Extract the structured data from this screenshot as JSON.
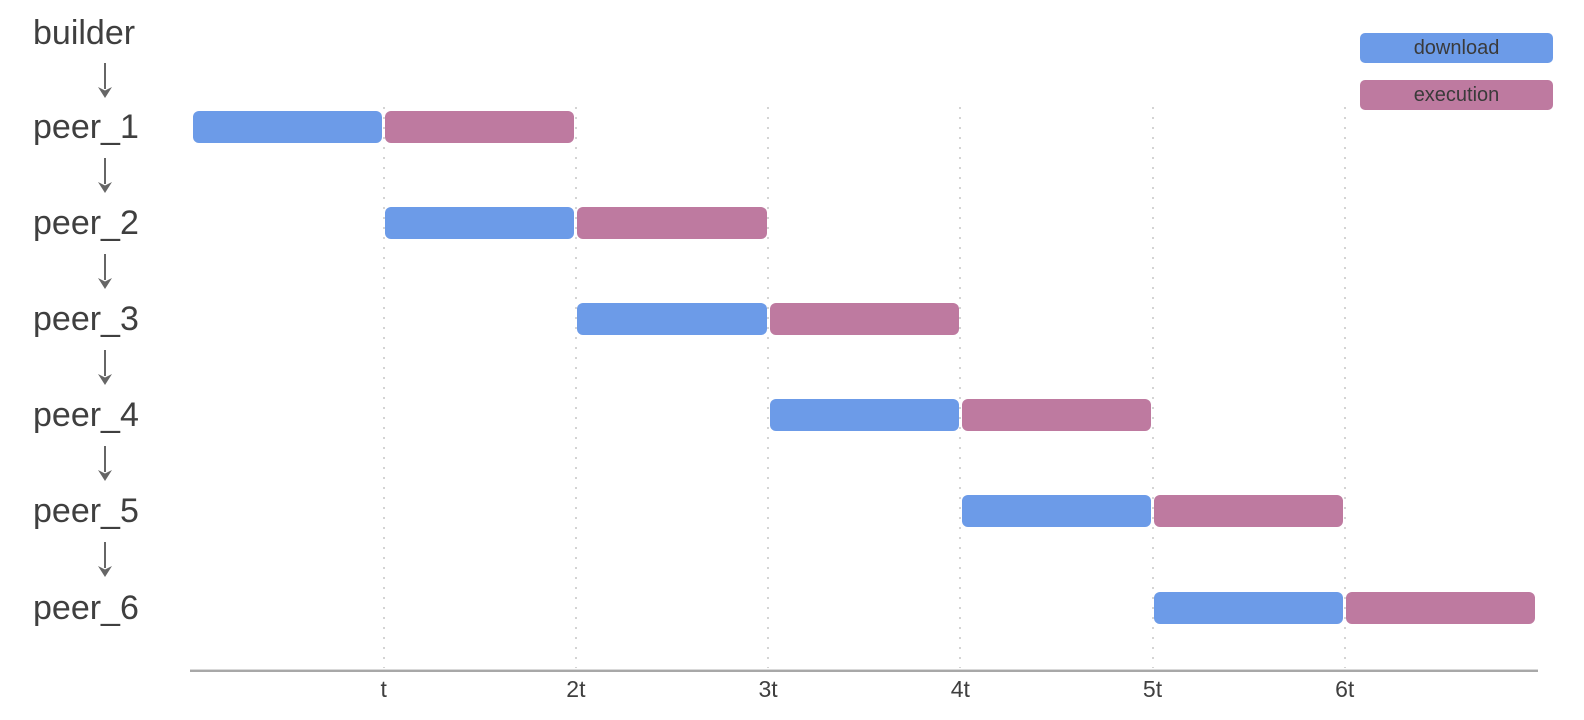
{
  "chart_data": {
    "type": "gantt",
    "title": "",
    "time_unit": "t",
    "x_tick_labels": [
      "t",
      "2t",
      "3t",
      "4t",
      "5t",
      "6t"
    ],
    "x_range_units": [
      0,
      7
    ],
    "grid": "vertical-dotted",
    "legend_position": "top-right",
    "arrows_between_rows": true,
    "colors": {
      "download": "#6c9be8",
      "execution": "#be7aa0"
    },
    "legend": [
      {
        "label": "download",
        "color": "#6c9be8"
      },
      {
        "label": "execution",
        "color": "#be7aa0"
      }
    ],
    "rows": [
      {
        "label": "builder",
        "tasks": []
      },
      {
        "label": "peer_1",
        "tasks": [
          {
            "name": "download",
            "start": 0,
            "end": 1
          },
          {
            "name": "execution",
            "start": 1,
            "end": 2
          }
        ]
      },
      {
        "label": "peer_2",
        "tasks": [
          {
            "name": "download",
            "start": 1,
            "end": 2
          },
          {
            "name": "execution",
            "start": 2,
            "end": 3
          }
        ]
      },
      {
        "label": "peer_3",
        "tasks": [
          {
            "name": "download",
            "start": 2,
            "end": 3
          },
          {
            "name": "execution",
            "start": 3,
            "end": 4
          }
        ]
      },
      {
        "label": "peer_4",
        "tasks": [
          {
            "name": "download",
            "start": 3,
            "end": 4
          },
          {
            "name": "execution",
            "start": 4,
            "end": 5
          }
        ]
      },
      {
        "label": "peer_5",
        "tasks": [
          {
            "name": "download",
            "start": 4,
            "end": 5
          },
          {
            "name": "execution",
            "start": 5,
            "end": 6
          }
        ]
      },
      {
        "label": "peer_6",
        "tasks": [
          {
            "name": "download",
            "start": 5,
            "end": 6
          },
          {
            "name": "execution",
            "start": 6,
            "end": 7
          }
        ]
      }
    ]
  }
}
